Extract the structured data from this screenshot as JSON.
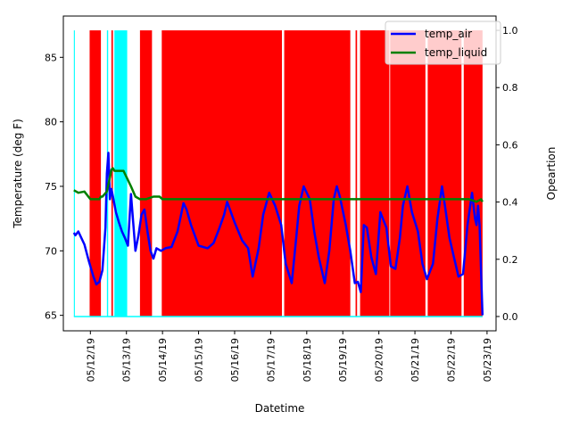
{
  "chart_data": {
    "type": "line",
    "title": "",
    "xlabel": "Datetime",
    "ylabel": "Temperature (deg F)",
    "y2label": "Opeartion",
    "x_range": [
      "2019-05-11T06:00",
      "2019-05-23T06:00"
    ],
    "ylim": [
      63.8,
      88.2
    ],
    "y2lim": [
      -0.05,
      1.05
    ],
    "x_ticks": [
      "05/12/19",
      "05/13/19",
      "05/14/19",
      "05/15/19",
      "05/16/19",
      "05/17/19",
      "05/18/19",
      "05/19/19",
      "05/20/19",
      "05/21/19",
      "05/22/19",
      "05/23/19"
    ],
    "y_ticks": [
      65,
      70,
      75,
      80,
      85
    ],
    "y2_ticks": [
      "0.0",
      "0.2",
      "0.4",
      "0.6",
      "0.8",
      "1.0"
    ],
    "legend": {
      "position": "top-right",
      "entries": [
        "temp_air",
        "temp_liquid"
      ]
    },
    "grid": false,
    "operation_bands": {
      "heating": {
        "color": "#ff0000",
        "value": 1,
        "spans": [
          [
            "2019-05-11T23:30",
            "2019-05-12T07:00"
          ],
          [
            "2019-05-12T14:00",
            "2019-05-12T15:00"
          ],
          [
            "2019-05-13T09:00",
            "2019-05-13T17:00"
          ],
          [
            "2019-05-13T23:30",
            "2019-05-17T07:30"
          ],
          [
            "2019-05-17T09:00",
            "2019-05-19T05:00"
          ],
          [
            "2019-05-19T08:30",
            "2019-05-19T09:30"
          ],
          [
            "2019-05-19T11:30",
            "2019-05-20T07:00"
          ],
          [
            "2019-05-20T07:30",
            "2019-05-21T07:00"
          ],
          [
            "2019-05-21T08:30",
            "2019-05-22T07:00"
          ],
          [
            "2019-05-22T08:30",
            "2019-05-22T21:00"
          ]
        ]
      },
      "cooling": {
        "color": "#00ffff",
        "value": 1,
        "spans": [
          [
            "2019-05-11T13:00",
            "2019-05-11T13:40"
          ],
          [
            "2019-05-12T11:00",
            "2019-05-12T11:50"
          ],
          [
            "2019-05-12T16:00",
            "2019-05-13T00:30"
          ]
        ]
      }
    },
    "series": [
      {
        "name": "temp_air",
        "color": "#0000ff",
        "x": [
          "2019-05-11T13:00",
          "2019-05-11T14:00",
          "2019-05-11T16:00",
          "2019-05-11T20:00",
          "2019-05-11T23:00",
          "2019-05-12T02:00",
          "2019-05-12T04:00",
          "2019-05-12T06:00",
          "2019-05-12T08:00",
          "2019-05-12T10:00",
          "2019-05-12T11:00",
          "2019-05-12T12:00",
          "2019-05-12T13:00",
          "2019-05-12T14:00",
          "2019-05-12T15:00",
          "2019-05-12T17:00",
          "2019-05-12T19:00",
          "2019-05-12T21:00",
          "2019-05-12T23:00",
          "2019-05-13T01:00",
          "2019-05-13T03:00",
          "2019-05-13T06:00",
          "2019-05-13T08:00",
          "2019-05-13T10:00",
          "2019-05-13T12:00",
          "2019-05-13T14:00",
          "2019-05-13T16:00",
          "2019-05-13T18:00",
          "2019-05-13T20:00",
          "2019-05-13T23:00",
          "2019-05-14T02:00",
          "2019-05-14T06:00",
          "2019-05-14T10:00",
          "2019-05-14T14:00",
          "2019-05-14T16:00",
          "2019-05-14T19:00",
          "2019-05-15T00:00",
          "2019-05-15T06:00",
          "2019-05-15T10:00",
          "2019-05-15T14:00",
          "2019-05-15T17:00",
          "2019-05-15T19:00",
          "2019-05-16T00:00",
          "2019-05-16T05:00",
          "2019-05-16T09:00",
          "2019-05-16T12:00",
          "2019-05-16T16:00",
          "2019-05-16T19:00",
          "2019-05-16T23:00",
          "2019-05-17T03:00",
          "2019-05-17T07:00",
          "2019-05-17T10:00",
          "2019-05-17T14:00",
          "2019-05-17T17:00",
          "2019-05-17T19:00",
          "2019-05-17T22:00",
          "2019-05-18T02:00",
          "2019-05-18T05:00",
          "2019-05-18T08:00",
          "2019-05-18T12:00",
          "2019-05-18T15:00",
          "2019-05-18T18:00",
          "2019-05-18T20:00",
          "2019-05-18T22:00",
          "2019-05-19T02:00",
          "2019-05-19T05:00",
          "2019-05-19T08:00",
          "2019-05-19T10:00",
          "2019-05-19T12:00",
          "2019-05-19T14:00",
          "2019-05-19T16:00",
          "2019-05-19T19:00",
          "2019-05-19T22:00",
          "2019-05-20T01:00",
          "2019-05-20T05:00",
          "2019-05-20T08:00",
          "2019-05-20T11:00",
          "2019-05-20T14:00",
          "2019-05-20T16:00",
          "2019-05-20T19:00",
          "2019-05-20T22:00",
          "2019-05-21T02:00",
          "2019-05-21T05:00",
          "2019-05-21T08:00",
          "2019-05-21T12:00",
          "2019-05-21T15:00",
          "2019-05-21T18:00",
          "2019-05-21T20:00",
          "2019-05-21T23:00",
          "2019-05-22T02:00",
          "2019-05-22T05:00",
          "2019-05-22T08:00",
          "2019-05-22T11:00",
          "2019-05-22T14:00",
          "2019-05-22T16:00",
          "2019-05-22T17:00",
          "2019-05-22T18:00",
          "2019-05-22T19:00",
          "2019-05-22T21:00"
        ],
        "y": [
          71.4,
          71.2,
          71.5,
          70.5,
          69.2,
          68.0,
          67.4,
          67.6,
          68.5,
          71.8,
          76.0,
          77.6,
          74.0,
          74.8,
          74.2,
          73.0,
          72.2,
          71.5,
          71.0,
          70.4,
          74.4,
          70.0,
          71.2,
          72.8,
          73.2,
          71.5,
          70.0,
          69.4,
          70.2,
          70.0,
          70.2,
          70.3,
          71.5,
          73.7,
          73.2,
          72.0,
          70.4,
          70.2,
          70.6,
          71.8,
          72.8,
          73.8,
          72.2,
          70.8,
          70.2,
          68.0,
          70.2,
          72.8,
          74.5,
          73.5,
          72.0,
          69.0,
          67.5,
          71.0,
          73.5,
          75.0,
          74.0,
          71.5,
          69.5,
          67.5,
          70.0,
          74.0,
          75.0,
          74.2,
          72.0,
          70.0,
          67.5,
          67.6,
          66.8,
          72.0,
          71.8,
          69.5,
          68.2,
          73.0,
          71.8,
          68.8,
          68.6,
          71.0,
          73.5,
          75.0,
          73.0,
          71.5,
          69.0,
          67.8,
          69.0,
          72.5,
          75.0,
          73.5,
          71.0,
          69.5,
          68.0,
          68.2,
          72.0,
          74.5,
          72.5,
          72.0,
          73.5,
          72.0,
          65.0
        ]
      },
      {
        "name": "temp_liquid",
        "color": "#008000",
        "x": [
          "2019-05-11T13:00",
          "2019-05-11T16:00",
          "2019-05-11T20:00",
          "2019-05-12T00:00",
          "2019-05-12T03:00",
          "2019-05-12T06:00",
          "2019-05-12T07:00",
          "2019-05-12T08:00",
          "2019-05-12T11:00",
          "2019-05-12T13:00",
          "2019-05-12T14:00",
          "2019-05-12T15:00",
          "2019-05-12T16:00",
          "2019-05-12T18:00",
          "2019-05-12T22:00",
          "2019-05-13T03:00",
          "2019-05-13T06:00",
          "2019-05-13T09:00",
          "2019-05-13T13:00",
          "2019-05-13T18:00",
          "2019-05-13T22:00",
          "2019-05-14T00:00",
          "2019-05-15T00:00",
          "2019-05-16T00:00",
          "2019-05-17T00:00",
          "2019-05-18T00:00",
          "2019-05-19T00:00",
          "2019-05-20T00:00",
          "2019-05-21T00:00",
          "2019-05-22T00:00",
          "2019-05-22T12:00",
          "2019-05-22T17:00",
          "2019-05-22T20:00",
          "2019-05-22T21:00"
        ],
        "y": [
          74.7,
          74.5,
          74.6,
          74.0,
          74.0,
          74.0,
          74.2,
          74.2,
          74.6,
          75.7,
          76.3,
          76.4,
          76.2,
          76.2,
          76.2,
          75.0,
          74.2,
          74.0,
          74.0,
          74.2,
          74.2,
          74.0,
          74.0,
          74.0,
          74.0,
          74.0,
          74.0,
          74.0,
          74.0,
          74.0,
          74.0,
          73.8,
          74.0,
          73.8
        ]
      }
    ]
  }
}
